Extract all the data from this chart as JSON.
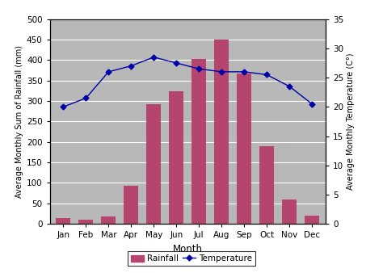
{
  "months": [
    "Jan",
    "Feb",
    "Mar",
    "Apr",
    "May",
    "Jun",
    "Jul",
    "Aug",
    "Sep",
    "Oct",
    "Nov",
    "Dec"
  ],
  "rainfall": [
    15,
    10,
    18,
    93,
    293,
    323,
    403,
    450,
    368,
    190,
    60,
    20
  ],
  "temperature": [
    20,
    21.5,
    26,
    27,
    28.5,
    27.5,
    26.5,
    26,
    26,
    25.5,
    23.5,
    20.5
  ],
  "bar_color": "#b5446e",
  "line_color": "#0000aa",
  "marker_color": "#0000aa",
  "bg_color": "#b8b8b8",
  "ylabel_left": "Average Monthly Sum of Rainfall (mm)",
  "ylabel_right": "Average Monthly Temperature (C°)",
  "xlabel": "Month",
  "ylim_left": [
    0,
    500
  ],
  "ylim_right": [
    0,
    35
  ],
  "yticks_left": [
    0,
    50,
    100,
    150,
    200,
    250,
    300,
    350,
    400,
    450,
    500
  ],
  "yticks_right": [
    0,
    5,
    10,
    15,
    20,
    25,
    30,
    35
  ],
  "legend_rainfall": "Rainfall",
  "legend_temperature": "Temperature"
}
